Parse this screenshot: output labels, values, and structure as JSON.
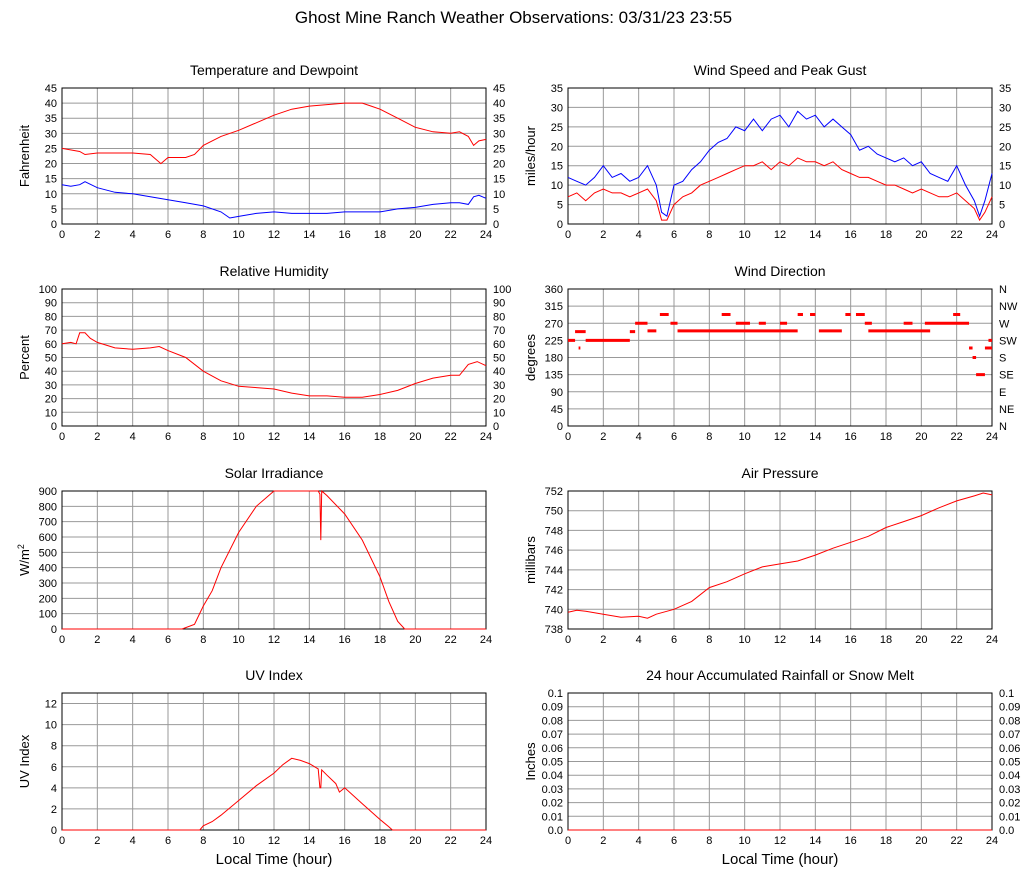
{
  "title": "Ghost Mine Ranch Weather Observations: 03/31/23 23:55",
  "x_axis_label": "Local Time (hour)",
  "colors": {
    "red": "#ff0000",
    "blue": "#0000ff",
    "grid": "#999999"
  },
  "chart_data": [
    {
      "id": "temp",
      "type": "line",
      "title": "Temperature and Dewpoint",
      "ylabel": "Fahrenheit",
      "xlim": [
        0,
        24
      ],
      "ylim": [
        0,
        45
      ],
      "yticks": [
        0,
        5,
        10,
        15,
        20,
        25,
        30,
        35,
        40,
        45
      ],
      "right_ticks": [
        "0",
        "5",
        "10",
        "15",
        "20",
        "25",
        "30",
        "35",
        "40",
        "45"
      ],
      "series": [
        {
          "color": "#ff0000",
          "x": [
            0,
            1,
            1.3,
            2,
            3,
            4,
            5,
            5.6,
            6,
            7,
            7.5,
            8,
            9,
            10,
            11,
            12,
            13,
            14,
            15,
            16,
            17,
            17.5,
            18,
            19,
            20,
            21,
            22,
            22.5,
            23,
            23.3,
            23.6,
            24
          ],
          "y": [
            25,
            24,
            23,
            23.5,
            23.5,
            23.5,
            23,
            20,
            22,
            22,
            23,
            26,
            29,
            31,
            33.5,
            36,
            38,
            39,
            39.5,
            40,
            40,
            39,
            38,
            35,
            32,
            30.5,
            30,
            30.5,
            29,
            26,
            27.5,
            28
          ]
        },
        {
          "color": "#0000ff",
          "x": [
            0,
            0.5,
            1,
            1.3,
            2,
            3,
            4,
            5,
            6,
            7,
            8,
            9,
            9.5,
            10,
            10.5,
            11,
            12,
            13,
            14,
            15,
            16,
            17,
            18,
            19,
            20,
            21,
            22,
            22.5,
            23,
            23.3,
            23.6,
            24
          ],
          "y": [
            13,
            12.5,
            13,
            14,
            12,
            10.5,
            10,
            9,
            8,
            7,
            6,
            4,
            2,
            2.5,
            3,
            3.5,
            4,
            3.5,
            3.5,
            3.5,
            4,
            4,
            4,
            5,
            5.5,
            6.5,
            7,
            7,
            6.5,
            9,
            9.5,
            8.5
          ]
        }
      ]
    },
    {
      "id": "wind",
      "type": "line",
      "title": "Wind Speed and Peak Gust",
      "ylabel": "miles/hour",
      "xlim": [
        0,
        24
      ],
      "ylim": [
        0,
        35
      ],
      "yticks": [
        0,
        5,
        10,
        15,
        20,
        25,
        30,
        35
      ],
      "right_ticks": [
        "0",
        "5",
        "10",
        "15",
        "20",
        "25",
        "30",
        "35"
      ],
      "series": [
        {
          "color": "#0000ff",
          "x": [
            0,
            0.5,
            1,
            1.5,
            2,
            2.5,
            3,
            3.5,
            4,
            4.5,
            5,
            5.3,
            5.6,
            6,
            6.5,
            7,
            7.5,
            8,
            8.5,
            9,
            9.5,
            10,
            10.5,
            11,
            11.5,
            12,
            12.5,
            13,
            13.5,
            14,
            14.5,
            15,
            15.5,
            16,
            16.5,
            17,
            17.5,
            18,
            18.5,
            19,
            19.5,
            20,
            20.5,
            21,
            21.5,
            22,
            22.5,
            23,
            23.3,
            23.6,
            24
          ],
          "y": [
            12,
            11,
            10,
            12,
            15,
            12,
            13,
            11,
            12,
            15,
            10,
            3,
            2,
            10,
            11,
            14,
            16,
            19,
            21,
            22,
            25,
            24,
            27,
            24,
            27,
            28,
            25,
            29,
            27,
            28,
            25,
            27,
            25,
            23,
            19,
            20,
            18,
            17,
            16,
            17,
            15,
            16,
            13,
            12,
            11,
            15,
            10,
            6,
            2,
            6,
            13
          ]
        },
        {
          "color": "#ff0000",
          "x": [
            0,
            0.5,
            1,
            1.5,
            2,
            2.5,
            3,
            3.5,
            4,
            4.5,
            5,
            5.3,
            5.6,
            6,
            6.5,
            7,
            7.5,
            8,
            8.5,
            9,
            9.5,
            10,
            10.5,
            11,
            11.5,
            12,
            12.5,
            13,
            13.5,
            14,
            14.5,
            15,
            15.5,
            16,
            16.5,
            17,
            17.5,
            18,
            18.5,
            19,
            19.5,
            20,
            20.5,
            21,
            21.5,
            22,
            22.5,
            23,
            23.3,
            23.6,
            24
          ],
          "y": [
            7,
            8,
            6,
            8,
            9,
            8,
            8,
            7,
            8,
            9,
            6,
            1,
            1,
            5,
            7,
            8,
            10,
            11,
            12,
            13,
            14,
            15,
            15,
            16,
            14,
            16,
            15,
            17,
            16,
            16,
            15,
            16,
            14,
            13,
            12,
            12,
            11,
            10,
            10,
            9,
            8,
            9,
            8,
            7,
            7,
            8,
            6,
            4,
            1,
            3,
            7
          ]
        }
      ]
    },
    {
      "id": "rh",
      "type": "line",
      "title": "Relative Humidity",
      "ylabel": "Percent",
      "xlim": [
        0,
        24
      ],
      "ylim": [
        0,
        100
      ],
      "yticks": [
        0,
        10,
        20,
        30,
        40,
        50,
        60,
        70,
        80,
        90,
        100
      ],
      "right_ticks": [
        "0",
        "10",
        "20",
        "30",
        "40",
        "50",
        "60",
        "70",
        "80",
        "90",
        "100"
      ],
      "series": [
        {
          "color": "#ff0000",
          "x": [
            0,
            0.5,
            0.8,
            1,
            1.3,
            1.6,
            2,
            3,
            4,
            5,
            5.5,
            6,
            7,
            8,
            9,
            10,
            11,
            12,
            13,
            14,
            15,
            16,
            17,
            18,
            19,
            20,
            21,
            22,
            22.5,
            23,
            23.5,
            24
          ],
          "y": [
            60,
            61,
            60,
            68,
            68,
            64,
            61,
            57,
            56,
            57,
            58,
            55,
            50,
            40,
            33,
            29,
            28,
            27,
            24,
            22,
            22,
            21,
            21,
            23,
            26,
            31,
            35,
            37,
            37,
            45,
            47,
            44
          ]
        }
      ]
    },
    {
      "id": "dir",
      "type": "scatter",
      "title": "Wind Direction",
      "ylabel": "degrees",
      "xlim": [
        0,
        24
      ],
      "ylim": [
        0,
        360
      ],
      "yticks": [
        0,
        45,
        90,
        135,
        180,
        225,
        270,
        315,
        360
      ],
      "right_ticks": [
        "N",
        "NE",
        "E",
        "SE",
        "S",
        "SW",
        "W",
        "NW",
        "N"
      ],
      "series": [
        {
          "color": "#ff0000",
          "segments": [
            [
              0,
              0.4,
              225
            ],
            [
              0.4,
              1,
              248
            ],
            [
              0.6,
              0.7,
              205
            ],
            [
              1,
              3.5,
              225
            ],
            [
              3.5,
              3.8,
              248
            ],
            [
              3.8,
              4.5,
              270
            ],
            [
              4.5,
              5,
              250
            ],
            [
              5.2,
              5.7,
              293
            ],
            [
              5.8,
              6.2,
              270
            ],
            [
              6.2,
              13,
              250
            ],
            [
              8.7,
              9.2,
              293
            ],
            [
              9.5,
              10.3,
              270
            ],
            [
              10.8,
              11.2,
              270
            ],
            [
              12,
              12.4,
              270
            ],
            [
              13,
              13.3,
              293
            ],
            [
              13.7,
              14,
              293
            ],
            [
              14.2,
              15.5,
              250
            ],
            [
              15.7,
              16,
              293
            ],
            [
              16.3,
              16.8,
              293
            ],
            [
              16.8,
              17.2,
              270
            ],
            [
              17,
              20.5,
              250
            ],
            [
              19,
              19.5,
              270
            ],
            [
              20.2,
              22.7,
              270
            ],
            [
              21.8,
              22.2,
              293
            ],
            [
              22.7,
              22.9,
              205
            ],
            [
              22.9,
              23.1,
              180
            ],
            [
              23.1,
              23.6,
              135
            ],
            [
              23.6,
              24,
              205
            ],
            [
              23.8,
              24,
              225
            ]
          ]
        }
      ]
    },
    {
      "id": "solar",
      "type": "line",
      "title": "Solar Irradiance",
      "ylabel": "W/m",
      "ylabel_sup": "2",
      "xlim": [
        0,
        24
      ],
      "ylim": [
        0,
        900
      ],
      "yticks": [
        0,
        100,
        200,
        300,
        400,
        500,
        600,
        700,
        800,
        900
      ],
      "right_ticks": [],
      "series": [
        {
          "color": "#ff0000",
          "x": [
            0,
            6.8,
            7.5,
            8,
            8.5,
            9,
            10,
            11,
            12,
            12.1,
            14.5,
            14.6,
            14.65,
            14.7,
            15,
            16,
            17,
            18,
            18.5,
            19,
            19.4,
            20,
            24
          ],
          "y": [
            0,
            0,
            30,
            150,
            250,
            400,
            630,
            800,
            900,
            920,
            920,
            880,
            580,
            900,
            870,
            750,
            580,
            340,
            180,
            50,
            0,
            0,
            0
          ]
        }
      ]
    },
    {
      "id": "press",
      "type": "line",
      "title": "Air Pressure",
      "ylabel": "millibars",
      "xlim": [
        0,
        24
      ],
      "ylim": [
        738,
        752
      ],
      "yticks": [
        738,
        740,
        742,
        744,
        746,
        748,
        750,
        752
      ],
      "right_ticks": [],
      "series": [
        {
          "color": "#ff0000",
          "x": [
            0,
            0.5,
            1,
            2,
            3,
            4,
            4.5,
            5,
            6,
            7,
            8,
            9,
            10,
            11,
            12,
            13,
            14,
            15,
            16,
            17,
            18,
            19,
            20,
            21,
            22,
            23,
            23.5,
            24
          ],
          "y": [
            739.7,
            739.9,
            739.8,
            739.5,
            739.2,
            739.3,
            739.1,
            739.5,
            740.0,
            740.8,
            742.2,
            742.8,
            743.6,
            744.3,
            744.6,
            744.9,
            745.5,
            746.2,
            746.8,
            747.4,
            748.3,
            748.9,
            749.5,
            750.3,
            751.0,
            751.5,
            751.8,
            751.6
          ]
        }
      ]
    },
    {
      "id": "uv",
      "type": "line",
      "title": "UV Index",
      "ylabel": "UV Index",
      "xlim": [
        0,
        24
      ],
      "ylim": [
        0,
        13
      ],
      "yticks": [
        0,
        2,
        4,
        6,
        8,
        10,
        12
      ],
      "right_ticks": [],
      "series": [
        {
          "color": "#ff0000",
          "x": [
            0,
            7.8,
            8,
            8.5,
            9,
            10,
            11,
            12,
            12.5,
            13,
            13.5,
            14,
            14.5,
            14.6,
            14.65,
            14.7,
            15,
            15.5,
            15.7,
            16,
            17,
            18,
            18.5,
            18.7,
            24
          ],
          "y": [
            0,
            0,
            0.4,
            0.8,
            1.4,
            2.8,
            4.2,
            5.4,
            6.2,
            6.8,
            6.6,
            6.3,
            5.8,
            4.0,
            4.0,
            5.7,
            5.2,
            4.4,
            3.6,
            4.0,
            2.5,
            1.0,
            0.3,
            0,
            0
          ]
        }
      ]
    },
    {
      "id": "rain",
      "type": "line",
      "title": "24 hour Accumulated Rainfall or Snow Melt",
      "ylabel": "Inches",
      "xlim": [
        0,
        24
      ],
      "ylim": [
        0,
        0.1
      ],
      "yticks": [
        0,
        0.01,
        0.02,
        0.03,
        0.04,
        0.05,
        0.06,
        0.07,
        0.08,
        0.09,
        0.1
      ],
      "ytick_labels": [
        "0.0",
        "0.01",
        "0.02",
        "0.03",
        "0.04",
        "0.05",
        "0.06",
        "0.07",
        "0.08",
        "0.09",
        "0.1"
      ],
      "right_ticks": [
        "0.0",
        "0.01",
        "0.02",
        "0.03",
        "0.04",
        "0.05",
        "0.06",
        "0.07",
        "0.08",
        "0.09",
        "0.1"
      ],
      "series": [
        {
          "color": "#ff0000",
          "x": [
            0,
            24
          ],
          "y": [
            0,
            0
          ]
        }
      ]
    }
  ]
}
